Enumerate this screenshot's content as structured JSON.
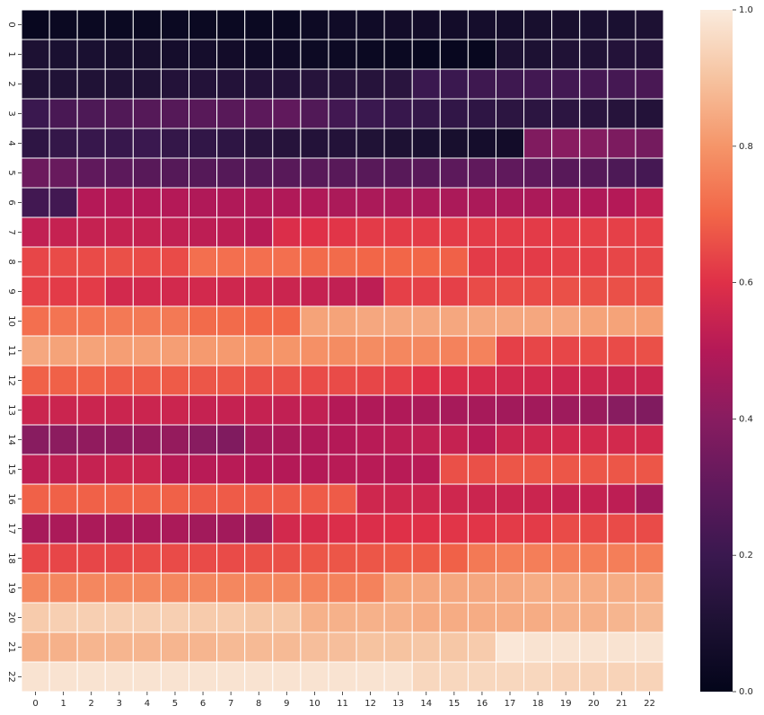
{
  "chart_data": {
    "type": "heatmap",
    "title": "",
    "xlabel": "",
    "ylabel": "",
    "x_labels": [
      "0",
      "1",
      "2",
      "3",
      "4",
      "5",
      "6",
      "7",
      "8",
      "9",
      "10",
      "11",
      "12",
      "13",
      "14",
      "15",
      "16",
      "17",
      "18",
      "19",
      "20",
      "21",
      "22"
    ],
    "y_labels": [
      "0",
      "1",
      "2",
      "3",
      "4",
      "5",
      "6",
      "7",
      "8",
      "9",
      "10",
      "11",
      "12",
      "13",
      "14",
      "15",
      "16",
      "17",
      "18",
      "19",
      "20",
      "21",
      "22"
    ],
    "colormap": "rocket",
    "colorbar": {
      "range": [
        0.0,
        1.0
      ],
      "ticks": [
        "0.0",
        "0.2",
        "0.4",
        "0.6",
        "0.8",
        "1.0"
      ]
    },
    "grid_lines": "white",
    "values": [
      [
        0.02,
        0.03,
        0.03,
        0.03,
        0.03,
        0.03,
        0.03,
        0.03,
        0.03,
        0.03,
        0.04,
        0.05,
        0.05,
        0.06,
        0.06,
        0.06,
        0.07,
        0.07,
        0.08,
        0.08,
        0.09,
        0.09,
        0.1
      ],
      [
        0.1,
        0.09,
        0.09,
        0.08,
        0.08,
        0.07,
        0.07,
        0.06,
        0.05,
        0.05,
        0.04,
        0.04,
        0.03,
        0.03,
        0.02,
        0.02,
        0.02,
        0.1,
        0.1,
        0.11,
        0.11,
        0.12,
        0.12
      ],
      [
        0.11,
        0.11,
        0.11,
        0.11,
        0.11,
        0.12,
        0.12,
        0.12,
        0.12,
        0.12,
        0.13,
        0.13,
        0.13,
        0.14,
        0.2,
        0.2,
        0.21,
        0.21,
        0.22,
        0.22,
        0.23,
        0.23,
        0.24
      ],
      [
        0.2,
        0.24,
        0.25,
        0.26,
        0.27,
        0.27,
        0.28,
        0.28,
        0.29,
        0.3,
        0.26,
        0.22,
        0.2,
        0.19,
        0.18,
        0.17,
        0.16,
        0.15,
        0.15,
        0.15,
        0.14,
        0.13,
        0.12
      ],
      [
        0.16,
        0.18,
        0.19,
        0.19,
        0.2,
        0.18,
        0.17,
        0.16,
        0.14,
        0.13,
        0.12,
        0.12,
        0.11,
        0.1,
        0.09,
        0.08,
        0.07,
        0.06,
        0.38,
        0.4,
        0.39,
        0.37,
        0.35
      ],
      [
        0.33,
        0.32,
        0.3,
        0.29,
        0.28,
        0.27,
        0.27,
        0.27,
        0.27,
        0.28,
        0.28,
        0.28,
        0.28,
        0.28,
        0.28,
        0.29,
        0.3,
        0.3,
        0.3,
        0.28,
        0.27,
        0.25,
        0.23
      ],
      [
        0.22,
        0.22,
        0.5,
        0.5,
        0.5,
        0.5,
        0.49,
        0.49,
        0.49,
        0.49,
        0.49,
        0.48,
        0.48,
        0.48,
        0.48,
        0.48,
        0.48,
        0.48,
        0.48,
        0.48,
        0.49,
        0.5,
        0.53
      ],
      [
        0.53,
        0.54,
        0.54,
        0.54,
        0.54,
        0.53,
        0.52,
        0.52,
        0.51,
        0.59,
        0.6,
        0.61,
        0.62,
        0.62,
        0.62,
        0.62,
        0.62,
        0.62,
        0.62,
        0.62,
        0.63,
        0.63,
        0.63
      ],
      [
        0.64,
        0.65,
        0.65,
        0.66,
        0.65,
        0.65,
        0.72,
        0.72,
        0.72,
        0.72,
        0.71,
        0.71,
        0.7,
        0.7,
        0.7,
        0.69,
        0.62,
        0.62,
        0.62,
        0.63,
        0.63,
        0.64,
        0.64
      ],
      [
        0.63,
        0.62,
        0.62,
        0.57,
        0.57,
        0.57,
        0.57,
        0.56,
        0.56,
        0.55,
        0.54,
        0.53,
        0.52,
        0.63,
        0.63,
        0.63,
        0.65,
        0.65,
        0.65,
        0.66,
        0.66,
        0.66,
        0.66
      ],
      [
        0.72,
        0.73,
        0.73,
        0.74,
        0.74,
        0.74,
        0.71,
        0.71,
        0.7,
        0.7,
        0.83,
        0.83,
        0.84,
        0.84,
        0.84,
        0.84,
        0.84,
        0.84,
        0.84,
        0.84,
        0.83,
        0.83,
        0.82
      ],
      [
        0.84,
        0.83,
        0.83,
        0.82,
        0.82,
        0.82,
        0.81,
        0.81,
        0.8,
        0.8,
        0.79,
        0.78,
        0.78,
        0.77,
        0.77,
        0.76,
        0.76,
        0.63,
        0.64,
        0.64,
        0.65,
        0.65,
        0.66
      ],
      [
        0.69,
        0.69,
        0.69,
        0.68,
        0.68,
        0.68,
        0.67,
        0.67,
        0.66,
        0.66,
        0.65,
        0.65,
        0.64,
        0.63,
        0.6,
        0.59,
        0.58,
        0.57,
        0.57,
        0.56,
        0.56,
        0.55,
        0.55
      ],
      [
        0.55,
        0.55,
        0.55,
        0.55,
        0.55,
        0.55,
        0.54,
        0.54,
        0.54,
        0.53,
        0.53,
        0.5,
        0.49,
        0.49,
        0.48,
        0.47,
        0.47,
        0.46,
        0.46,
        0.45,
        0.44,
        0.4,
        0.38
      ],
      [
        0.4,
        0.41,
        0.42,
        0.42,
        0.43,
        0.43,
        0.4,
        0.38,
        0.47,
        0.48,
        0.49,
        0.5,
        0.51,
        0.52,
        0.53,
        0.54,
        0.51,
        0.55,
        0.56,
        0.57,
        0.57,
        0.57,
        0.57
      ],
      [
        0.52,
        0.53,
        0.54,
        0.55,
        0.55,
        0.51,
        0.51,
        0.51,
        0.5,
        0.5,
        0.5,
        0.51,
        0.51,
        0.51,
        0.51,
        0.66,
        0.66,
        0.67,
        0.67,
        0.67,
        0.67,
        0.67,
        0.67
      ],
      [
        0.69,
        0.69,
        0.69,
        0.69,
        0.69,
        0.69,
        0.68,
        0.68,
        0.68,
        0.68,
        0.68,
        0.68,
        0.56,
        0.56,
        0.56,
        0.56,
        0.55,
        0.55,
        0.55,
        0.54,
        0.54,
        0.52,
        0.46
      ],
      [
        0.47,
        0.48,
        0.48,
        0.48,
        0.48,
        0.48,
        0.46,
        0.46,
        0.45,
        0.57,
        0.58,
        0.59,
        0.59,
        0.6,
        0.6,
        0.61,
        0.61,
        0.62,
        0.62,
        0.65,
        0.65,
        0.65,
        0.65
      ],
      [
        0.64,
        0.64,
        0.64,
        0.64,
        0.65,
        0.65,
        0.65,
        0.65,
        0.66,
        0.66,
        0.67,
        0.67,
        0.67,
        0.68,
        0.68,
        0.69,
        0.74,
        0.75,
        0.75,
        0.75,
        0.75,
        0.75,
        0.75
      ],
      [
        0.77,
        0.77,
        0.77,
        0.77,
        0.77,
        0.77,
        0.77,
        0.77,
        0.77,
        0.77,
        0.76,
        0.76,
        0.76,
        0.83,
        0.84,
        0.84,
        0.84,
        0.84,
        0.85,
        0.85,
        0.85,
        0.85,
        0.85
      ],
      [
        0.92,
        0.93,
        0.93,
        0.93,
        0.93,
        0.93,
        0.92,
        0.92,
        0.91,
        0.91,
        0.86,
        0.86,
        0.86,
        0.86,
        0.85,
        0.85,
        0.85,
        0.85,
        0.85,
        0.86,
        0.86,
        0.87,
        0.88
      ],
      [
        0.86,
        0.86,
        0.87,
        0.87,
        0.87,
        0.87,
        0.87,
        0.88,
        0.88,
        0.88,
        0.89,
        0.89,
        0.9,
        0.9,
        0.91,
        0.91,
        0.92,
        0.99,
        0.98,
        0.98,
        0.98,
        0.98,
        0.98
      ],
      [
        0.98,
        0.98,
        0.98,
        0.98,
        0.98,
        0.98,
        0.98,
        0.98,
        0.98,
        0.98,
        0.98,
        0.98,
        0.98,
        0.98,
        0.95,
        0.95,
        0.95,
        0.95,
        0.95,
        0.94,
        0.94,
        0.94,
        0.94
      ]
    ]
  }
}
